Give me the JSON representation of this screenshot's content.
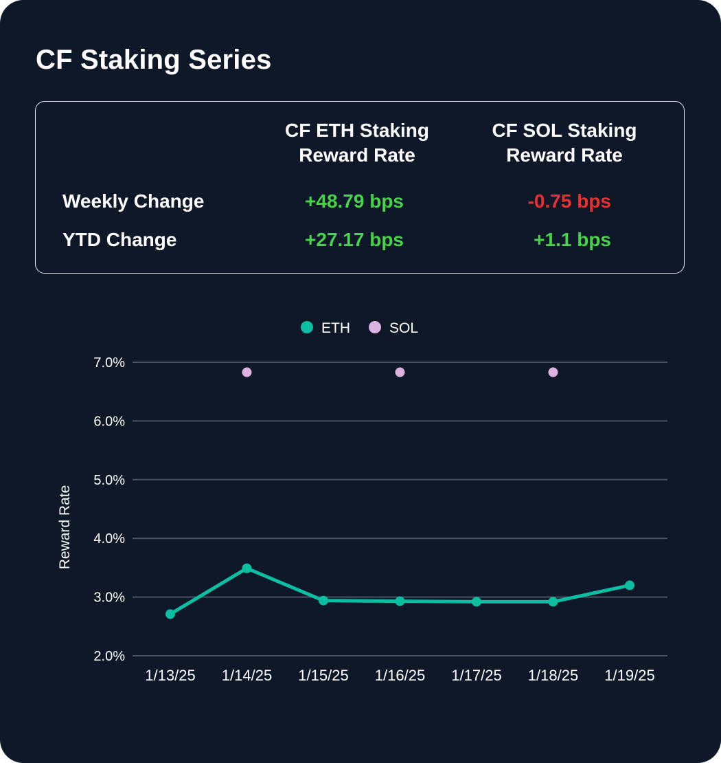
{
  "title": "CF Staking Series",
  "stats": {
    "col_eth": "CF ETH Staking Reward Rate",
    "col_eth_line1": "CF ETH Staking",
    "col_eth_line2": "Reward Rate",
    "col_sol_line1": "CF SOL Staking",
    "col_sol_line2": "Reward Rate",
    "rows": [
      {
        "label": "Weekly Change",
        "eth": "+48.79 bps",
        "sol": "-0.75 bps"
      },
      {
        "label": "YTD Change",
        "eth": "+27.17 bps",
        "sol": "+1.1 bps"
      }
    ]
  },
  "colors": {
    "background": "#0e1829",
    "eth": "#0dbfa2",
    "sol": "#dcb3df",
    "positive": "#46d44a",
    "negative": "#ec2f2f",
    "grid": "#4a5160"
  },
  "chart_data": {
    "type": "line",
    "categories": [
      "1/13/25",
      "1/14/25",
      "1/15/25",
      "1/16/25",
      "1/17/25",
      "1/18/25",
      "1/19/25"
    ],
    "series": [
      {
        "name": "ETH",
        "values": [
          2.71,
          3.49,
          2.94,
          2.93,
          2.92,
          2.92,
          3.2
        ],
        "style": "line-markers"
      },
      {
        "name": "SOL",
        "values": [
          null,
          6.83,
          null,
          6.83,
          null,
          6.83,
          null
        ],
        "style": "markers"
      }
    ],
    "title": "",
    "xlabel": "",
    "ylabel": "Reward Rate",
    "ylim": [
      2.0,
      7.0
    ],
    "yticks": [
      2.0,
      3.0,
      4.0,
      5.0,
      6.0,
      7.0
    ],
    "ytick_labels": [
      "2.0%",
      "3.0%",
      "4.0%",
      "5.0%",
      "6.0%",
      "7.0%"
    ],
    "legend": "top-center",
    "grid": "horizontal"
  }
}
